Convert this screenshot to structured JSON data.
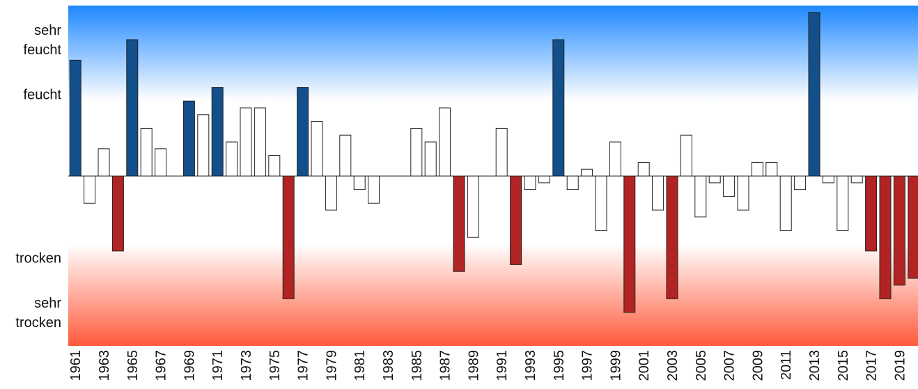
{
  "chart_data": {
    "type": "bar",
    "title": "",
    "xlabel": "",
    "ylabel": "",
    "ylim": [
      -3.0,
      3.0
    ],
    "grid": false,
    "background_gradient": {
      "top": "#1e88ff",
      "middle": "#ffffff",
      "bottom": "#ff5a3c"
    },
    "y_category_labels": [
      {
        "lines": [
          "sehr",
          "feucht"
        ],
        "value": 2.0
      },
      {
        "lines": [
          "feucht"
        ],
        "value": 1.2
      },
      {
        "lines": [
          "trocken"
        ],
        "value": -1.2
      },
      {
        "lines": [
          "sehr",
          "trocken"
        ],
        "value": -2.0
      }
    ],
    "categories": [
      1961,
      1962,
      1963,
      1964,
      1965,
      1966,
      1967,
      1968,
      1969,
      1970,
      1971,
      1972,
      1973,
      1974,
      1975,
      1976,
      1977,
      1978,
      1979,
      1980,
      1981,
      1982,
      1983,
      1984,
      1985,
      1986,
      1987,
      1988,
      1989,
      1990,
      1991,
      1992,
      1993,
      1994,
      1995,
      1996,
      1997,
      1998,
      1999,
      2000,
      2001,
      2002,
      2003,
      2004,
      2005,
      2006,
      2007,
      2008,
      2009,
      2010,
      2011,
      2012,
      2013,
      2014,
      2015,
      2016,
      2017,
      2018,
      2019,
      2020
    ],
    "x_tick_labels": [
      "1961",
      "1963",
      "1965",
      "1967",
      "1969",
      "1971",
      "1973",
      "1975",
      "1977",
      "1979",
      "1981",
      "1983",
      "1985",
      "1987",
      "1989",
      "1991",
      "1993",
      "1995",
      "1997",
      "1999",
      "2001",
      "2003",
      "2005",
      "2007",
      "2009",
      "2011",
      "2013",
      "2015",
      "2017",
      "2019"
    ],
    "values": [
      1.7,
      -0.4,
      0.4,
      -1.1,
      2.0,
      0.7,
      0.4,
      0,
      1.1,
      0.9,
      1.3,
      0.5,
      1.0,
      1.0,
      0.3,
      -1.8,
      1.3,
      0.8,
      -0.5,
      0.6,
      -0.2,
      -0.4,
      0,
      0,
      0.7,
      0.5,
      1.0,
      -1.4,
      -0.9,
      0,
      0.7,
      -1.3,
      -0.2,
      -0.1,
      2.0,
      -0.2,
      0.1,
      -0.8,
      0.5,
      -2.0,
      0.2,
      -0.5,
      -1.8,
      0.6,
      -0.6,
      -0.1,
      -0.3,
      -0.5,
      0.2,
      0.2,
      -0.8,
      -0.2,
      2.4,
      -0.1,
      -0.8,
      -0.1,
      -1.1,
      -1.8,
      -1.6,
      -1.5
    ],
    "colors": {
      "wet": "#134f8a",
      "dry": "#b22424",
      "normal": "#ffffff",
      "outline": "#222222"
    },
    "thresholds": {
      "wet": 1.1,
      "dry": -1.1
    }
  }
}
